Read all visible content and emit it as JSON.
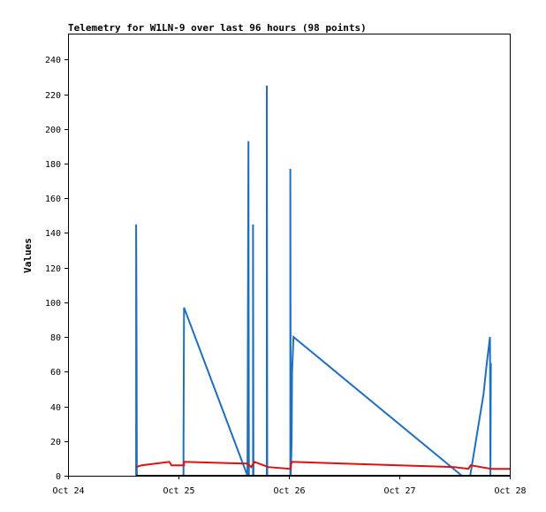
{
  "chart_data": {
    "type": "line",
    "title": "Telemetry for W1LN-9 over last 96 hours (98 points)",
    "ylabel": "Values",
    "xlabel": "",
    "xlim": [
      0,
      96
    ],
    "ylim": [
      0,
      255
    ],
    "x_ticks": [
      {
        "x": 0,
        "label": "Oct 24"
      },
      {
        "x": 24,
        "label": "Oct 25"
      },
      {
        "x": 48,
        "label": "Oct 26"
      },
      {
        "x": 72,
        "label": "Oct 27"
      },
      {
        "x": 96,
        "label": "Oct 28"
      }
    ],
    "y_ticks": [
      0,
      20,
      40,
      60,
      80,
      100,
      120,
      140,
      160,
      180,
      200,
      220,
      240
    ],
    "grid": false,
    "series": [
      {
        "color": "#1f6fbf",
        "points": [
          [
            14.8,
            0
          ],
          [
            14.8,
            145
          ],
          [
            14.9,
            73
          ],
          [
            14.95,
            0
          ],
          [
            25.1,
            0
          ],
          [
            25.1,
            17
          ],
          [
            25.2,
            97
          ],
          [
            39.0,
            0
          ],
          [
            39.2,
            193
          ],
          [
            39.3,
            0
          ],
          [
            40.2,
            0
          ],
          [
            40.2,
            145
          ],
          [
            40.3,
            0
          ],
          [
            43.2,
            0
          ],
          [
            43.2,
            225
          ],
          [
            43.3,
            0
          ],
          [
            48.3,
            0
          ],
          [
            48.3,
            177
          ],
          [
            48.4,
            0
          ],
          [
            48.6,
            20
          ],
          [
            48.7,
            60
          ],
          [
            49.0,
            80
          ],
          [
            85.6,
            0
          ],
          [
            87.4,
            0
          ],
          [
            90.3,
            47
          ],
          [
            91.0,
            65
          ],
          [
            91.7,
            80
          ],
          [
            91.8,
            0
          ],
          [
            91.9,
            65
          ]
        ]
      },
      {
        "color": "#dd1111",
        "points": [
          [
            14.8,
            5
          ],
          [
            16.0,
            6
          ],
          [
            22.0,
            8
          ],
          [
            22.5,
            6
          ],
          [
            25.2,
            6
          ],
          [
            25.2,
            8
          ],
          [
            39.0,
            7
          ],
          [
            39.8,
            5
          ],
          [
            40.5,
            8
          ],
          [
            42.5,
            6
          ],
          [
            43.5,
            5
          ],
          [
            48.3,
            4
          ],
          [
            48.6,
            8
          ],
          [
            60.0,
            7
          ],
          [
            72.0,
            6
          ],
          [
            84.0,
            5
          ],
          [
            87.0,
            4
          ],
          [
            87.5,
            6
          ],
          [
            92.0,
            4
          ],
          [
            96.0,
            4
          ]
        ]
      },
      {
        "color": "#000000",
        "points": [
          [
            14.8,
            0
          ],
          [
            96.0,
            0
          ]
        ]
      }
    ]
  }
}
